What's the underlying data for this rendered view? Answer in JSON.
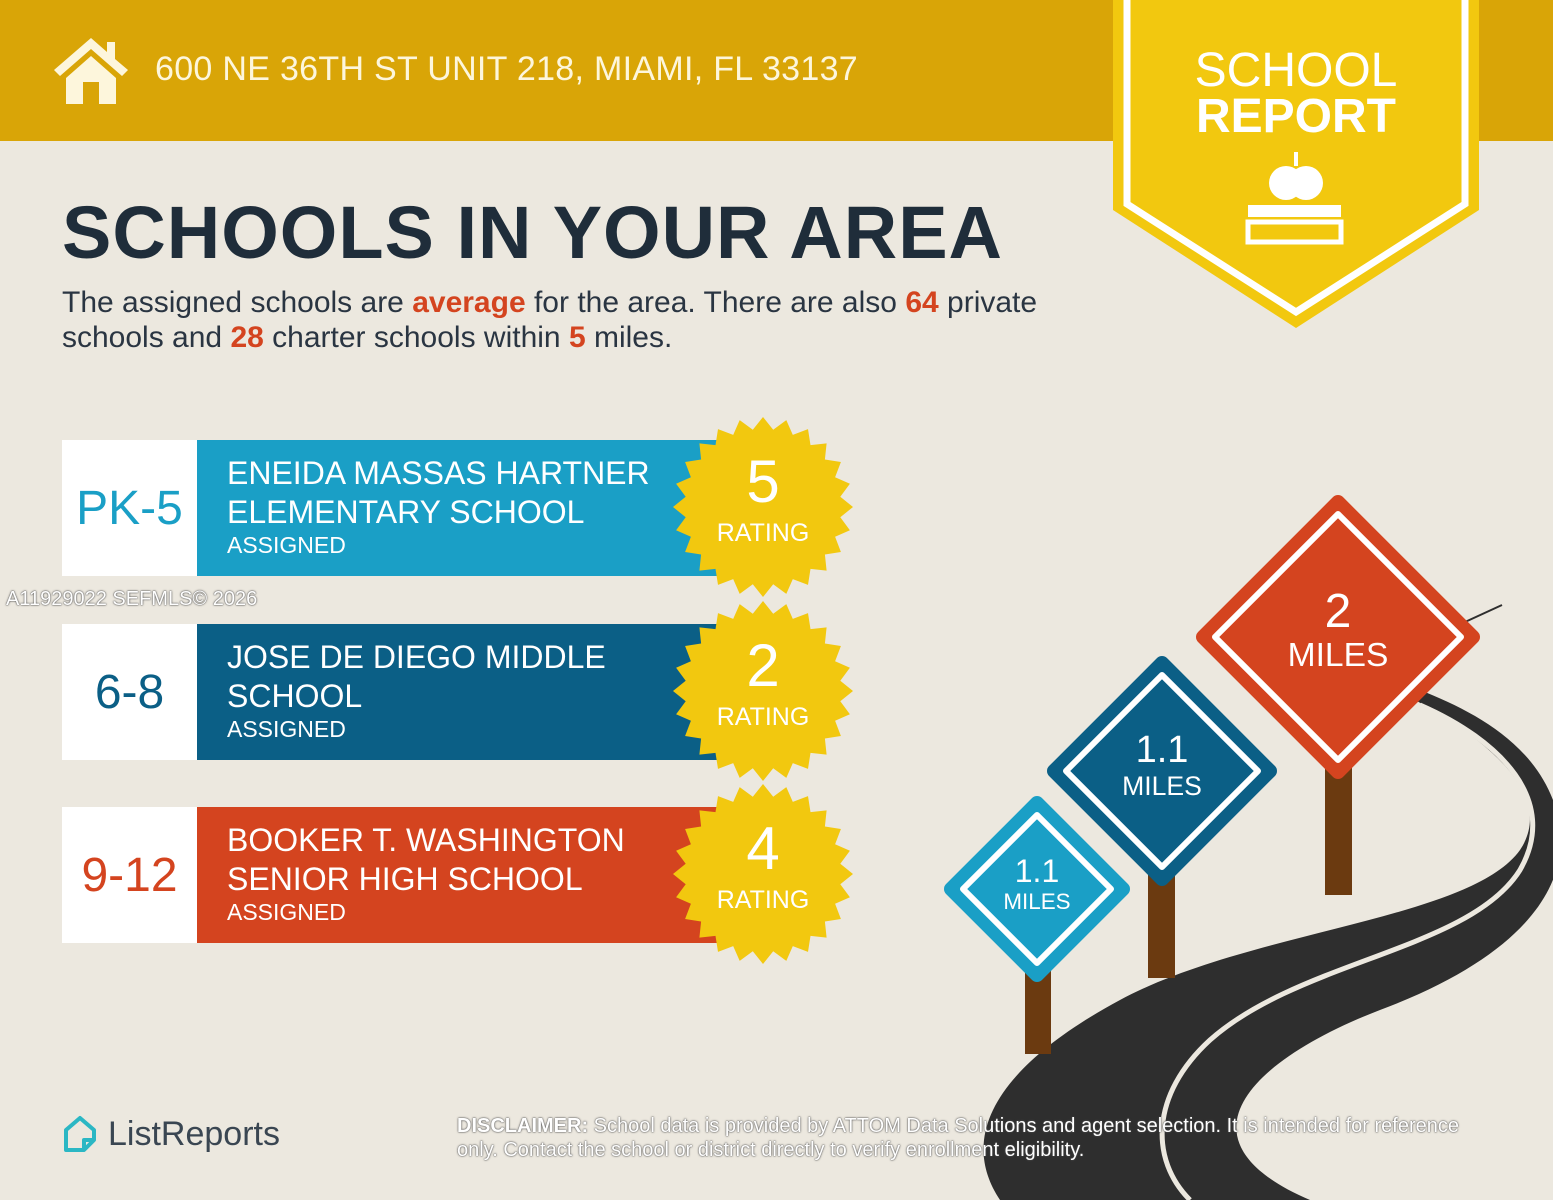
{
  "header": {
    "address": "600 NE 36TH ST UNIT 218, MIAMI, FL 33137",
    "icon": "house-icon"
  },
  "badge": {
    "line1": "SCHOOL",
    "line2": "REPORT",
    "icon": "apple-books-icon"
  },
  "title": "SCHOOLS IN YOUR AREA",
  "summary": {
    "p1": "The assigned schools are ",
    "quality": "average",
    "p2": " for the area. There are also ",
    "private_count": "64",
    "p3": " private schools and ",
    "charter_count": "28",
    "p4": " charter schools within ",
    "radius": "5",
    "p5": " miles."
  },
  "schools": [
    {
      "grade": "PK-5",
      "name_line1": "ENEIDA MASSAS HARTNER",
      "name_line2": "ELEMENTARY SCHOOL",
      "status": "ASSIGNED",
      "rating": "5",
      "rating_label": "RATING",
      "color": "#1a9fc6"
    },
    {
      "grade": "6-8",
      "name_line1": "JOSE DE DIEGO MIDDLE",
      "name_line2": "SCHOOL",
      "status": "ASSIGNED",
      "rating": "2",
      "rating_label": "RATING",
      "color": "#0b5f86"
    },
    {
      "grade": "9-12",
      "name_line1": "BOOKER T. WASHINGTON",
      "name_line2": "SENIOR HIGH SCHOOL",
      "status": "ASSIGNED",
      "rating": "4",
      "rating_label": "RATING",
      "color": "#d4441f"
    }
  ],
  "signs": [
    {
      "distance": "2",
      "unit": "MILES",
      "color": "#d4441f"
    },
    {
      "distance": "1.1",
      "unit": "MILES",
      "color": "#0b5f86"
    },
    {
      "distance": "1.1",
      "unit": "MILES",
      "color": "#1a9fc6"
    }
  ],
  "watermark": "A11929022  SEFMLS© 2026",
  "logo": {
    "text": "ListReports"
  },
  "disclaimer": {
    "label": "DISCLAIMER:",
    "text": " School data is provided by ATTOM Data Solutions and agent selection. It is intended for reference only. Contact the school or district directly to verify enrollment eligibility."
  },
  "colors": {
    "header": "#d9a507",
    "badge": "#f2c80f",
    "background": "#ece8df",
    "accent": "#d4441f"
  }
}
